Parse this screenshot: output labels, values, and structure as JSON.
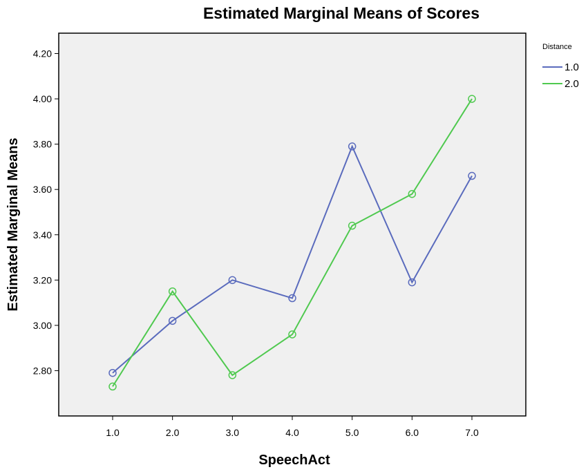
{
  "chart_data": {
    "type": "line",
    "title": "Estimated Marginal Means of Scores",
    "xlabel": "SpeechAct",
    "ylabel": "Estimated Marginal Means",
    "x": [
      1.0,
      2.0,
      3.0,
      4.0,
      5.0,
      6.0,
      7.0
    ],
    "x_tick_labels": [
      "1.0",
      "2.0",
      "3.0",
      "4.0",
      "5.0",
      "6.0",
      "7.0"
    ],
    "xlim": [
      0.1,
      7.9
    ],
    "ylim": [
      2.6,
      4.29
    ],
    "y_ticks": [
      2.8,
      3.0,
      3.2,
      3.4,
      3.6,
      3.8,
      4.0,
      4.2
    ],
    "y_tick_labels": [
      "2.80",
      "3.00",
      "3.20",
      "3.40",
      "3.60",
      "3.80",
      "4.00",
      "4.20"
    ],
    "grid": false,
    "legend_title": "Distance",
    "legend_position": "right",
    "plot_background": "#f0f0f0",
    "series": [
      {
        "name": "1.0",
        "color": "#5a6bbd",
        "values": [
          2.79,
          3.02,
          3.2,
          3.12,
          3.79,
          3.19,
          3.66
        ]
      },
      {
        "name": "2.0",
        "color": "#4fc94f",
        "values": [
          2.73,
          3.15,
          2.78,
          2.96,
          3.44,
          3.58,
          4.0
        ]
      }
    ]
  }
}
